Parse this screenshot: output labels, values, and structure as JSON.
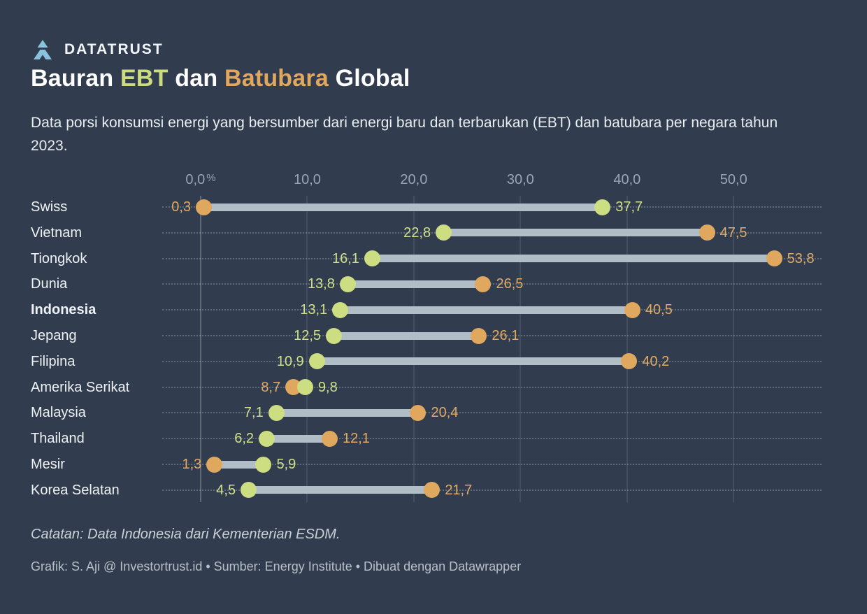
{
  "brand": {
    "name": "DATATRUST",
    "logo": "mountain-chevron-icon",
    "logo_color": "#8ac2dd"
  },
  "title": {
    "parts": [
      {
        "text": "Bauran ",
        "color": "#ffffff"
      },
      {
        "text": "EBT",
        "color": "#ccdd80"
      },
      {
        "text": " dan ",
        "color": "#ffffff"
      },
      {
        "text": "Batubara",
        "color": "#dfa75f"
      },
      {
        "text": " Global",
        "color": "#ffffff"
      }
    ]
  },
  "subtitle": "Data porsi konsumsi energi yang bersumber dari energi baru dan terbarukan (EBT) dan batubara per negara tahun 2023.",
  "note": "Catatan: Data Indonesia dari Kementerian ESDM.",
  "credit": "Grafik: S. Aji @ Investortrust.id • Sumber: Energy Institute • Dibuat dengan Datawrapper",
  "colors": {
    "background": "#313d4e",
    "ebt": "#cddd82",
    "ebt_text": "#cfe08a",
    "batubara": "#e0a75f",
    "batubara_text": "#e2aa64",
    "connector": "#b1bdc7"
  },
  "chart_data": {
    "type": "dumbbell",
    "unit": "%",
    "xlim": [
      0,
      58
    ],
    "grid": true,
    "x_ticks": [
      {
        "value": 0,
        "label": "0,0",
        "suffix": "%"
      },
      {
        "value": 10,
        "label": "10,0",
        "suffix": ""
      },
      {
        "value": 20,
        "label": "20,0",
        "suffix": ""
      },
      {
        "value": 30,
        "label": "30,0",
        "suffix": ""
      },
      {
        "value": 40,
        "label": "40,0",
        "suffix": ""
      },
      {
        "value": 50,
        "label": "50,0",
        "suffix": ""
      }
    ],
    "series": [
      {
        "name": "EBT",
        "color": "#cddd82"
      },
      {
        "name": "Batubara",
        "color": "#e0a75f"
      }
    ],
    "rows": [
      {
        "country": "Swiss",
        "ebt": 37.7,
        "ebt_label": "37,7",
        "batubara": 0.3,
        "batubara_label": "0,3",
        "bold": false
      },
      {
        "country": "Vietnam",
        "ebt": 22.8,
        "ebt_label": "22,8",
        "batubara": 47.5,
        "batubara_label": "47,5",
        "bold": false
      },
      {
        "country": "Tiongkok",
        "ebt": 16.1,
        "ebt_label": "16,1",
        "batubara": 53.8,
        "batubara_label": "53,8",
        "bold": false
      },
      {
        "country": "Dunia",
        "ebt": 13.8,
        "ebt_label": "13,8",
        "batubara": 26.5,
        "batubara_label": "26,5",
        "bold": false
      },
      {
        "country": "Indonesia",
        "ebt": 13.1,
        "ebt_label": "13,1",
        "batubara": 40.5,
        "batubara_label": "40,5",
        "bold": true
      },
      {
        "country": "Jepang",
        "ebt": 12.5,
        "ebt_label": "12,5",
        "batubara": 26.1,
        "batubara_label": "26,1",
        "bold": false
      },
      {
        "country": "Filipina",
        "ebt": 10.9,
        "ebt_label": "10,9",
        "batubara": 40.2,
        "batubara_label": "40,2",
        "bold": false
      },
      {
        "country": "Amerika Serikat",
        "ebt": 9.8,
        "ebt_label": "9,8",
        "batubara": 8.7,
        "batubara_label": "8,7",
        "bold": false
      },
      {
        "country": "Malaysia",
        "ebt": 7.1,
        "ebt_label": "7,1",
        "batubara": 20.4,
        "batubara_label": "20,4",
        "bold": false
      },
      {
        "country": "Thailand",
        "ebt": 6.2,
        "ebt_label": "6,2",
        "batubara": 12.1,
        "batubara_label": "12,1",
        "bold": false
      },
      {
        "country": "Mesir",
        "ebt": 5.9,
        "ebt_label": "5,9",
        "batubara": 1.3,
        "batubara_label": "1,3",
        "bold": false
      },
      {
        "country": "Korea Selatan",
        "ebt": 4.5,
        "ebt_label": "4,5",
        "batubara": 21.7,
        "batubara_label": "21,7",
        "bold": false
      }
    ]
  }
}
